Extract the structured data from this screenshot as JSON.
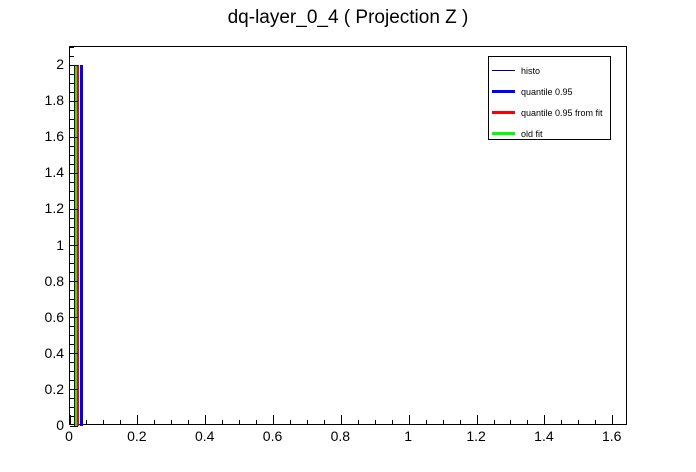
{
  "title": "dq-layer_0_4 ( Projection Z )",
  "chart_data": {
    "type": "line",
    "title": "dq-layer_0_4 ( Projection Z )",
    "xlabel": "",
    "ylabel": "",
    "xlim": [
      0,
      1.645
    ],
    "ylim": [
      0,
      2.1
    ],
    "grid": false,
    "x_minor_step": 0.05,
    "y_minor_step": 0.05,
    "x_major_ticks": [
      0,
      0.2,
      0.4,
      0.6,
      0.8,
      1,
      1.2,
      1.4,
      1.6
    ],
    "x_tick_labels": [
      "0",
      "0.2",
      "0.4",
      "0.6",
      "0.8",
      "1",
      "1.2",
      "1.4",
      "1.6"
    ],
    "y_major_ticks": [
      0,
      0.2,
      0.4,
      0.6,
      0.8,
      1,
      1.2,
      1.4,
      1.6,
      1.8,
      2
    ],
    "y_tick_labels": [
      "0",
      "0.2",
      "0.4",
      "0.6",
      "0.8",
      "1",
      "1.2",
      "1.4",
      "1.6",
      "1.8",
      "2"
    ],
    "series": [
      {
        "name": "histo",
        "style": "histogram-outline",
        "color": "#000080",
        "line_width": 1,
        "x_value": 0.013,
        "y_range": [
          0,
          2
        ]
      },
      {
        "name": "old fit",
        "style": "vline",
        "color": "#00ff00",
        "line_width": 2,
        "x_value": 0.019,
        "y_range": [
          0,
          2
        ]
      },
      {
        "name": "quantile 0.95 from fit",
        "style": "vline",
        "color": "#ff0000",
        "line_width": 2,
        "x_value": 0.025,
        "y_range": [
          0,
          2
        ]
      },
      {
        "name": "quantile 0.95",
        "style": "vline",
        "color": "#0000ff",
        "line_width": 3,
        "x_value": 0.034,
        "y_range": [
          0,
          2
        ]
      }
    ],
    "legend": {
      "position": "top-right",
      "entries": [
        {
          "label": "histo",
          "color": "#000080",
          "thickness": 1
        },
        {
          "label": "quantile 0.95",
          "color": "#0000ff",
          "thickness": 3
        },
        {
          "label": "quantile 0.95 from fit",
          "color": "#ff0000",
          "thickness": 3
        },
        {
          "label": "old fit",
          "color": "#00ff00",
          "thickness": 3
        }
      ]
    }
  }
}
